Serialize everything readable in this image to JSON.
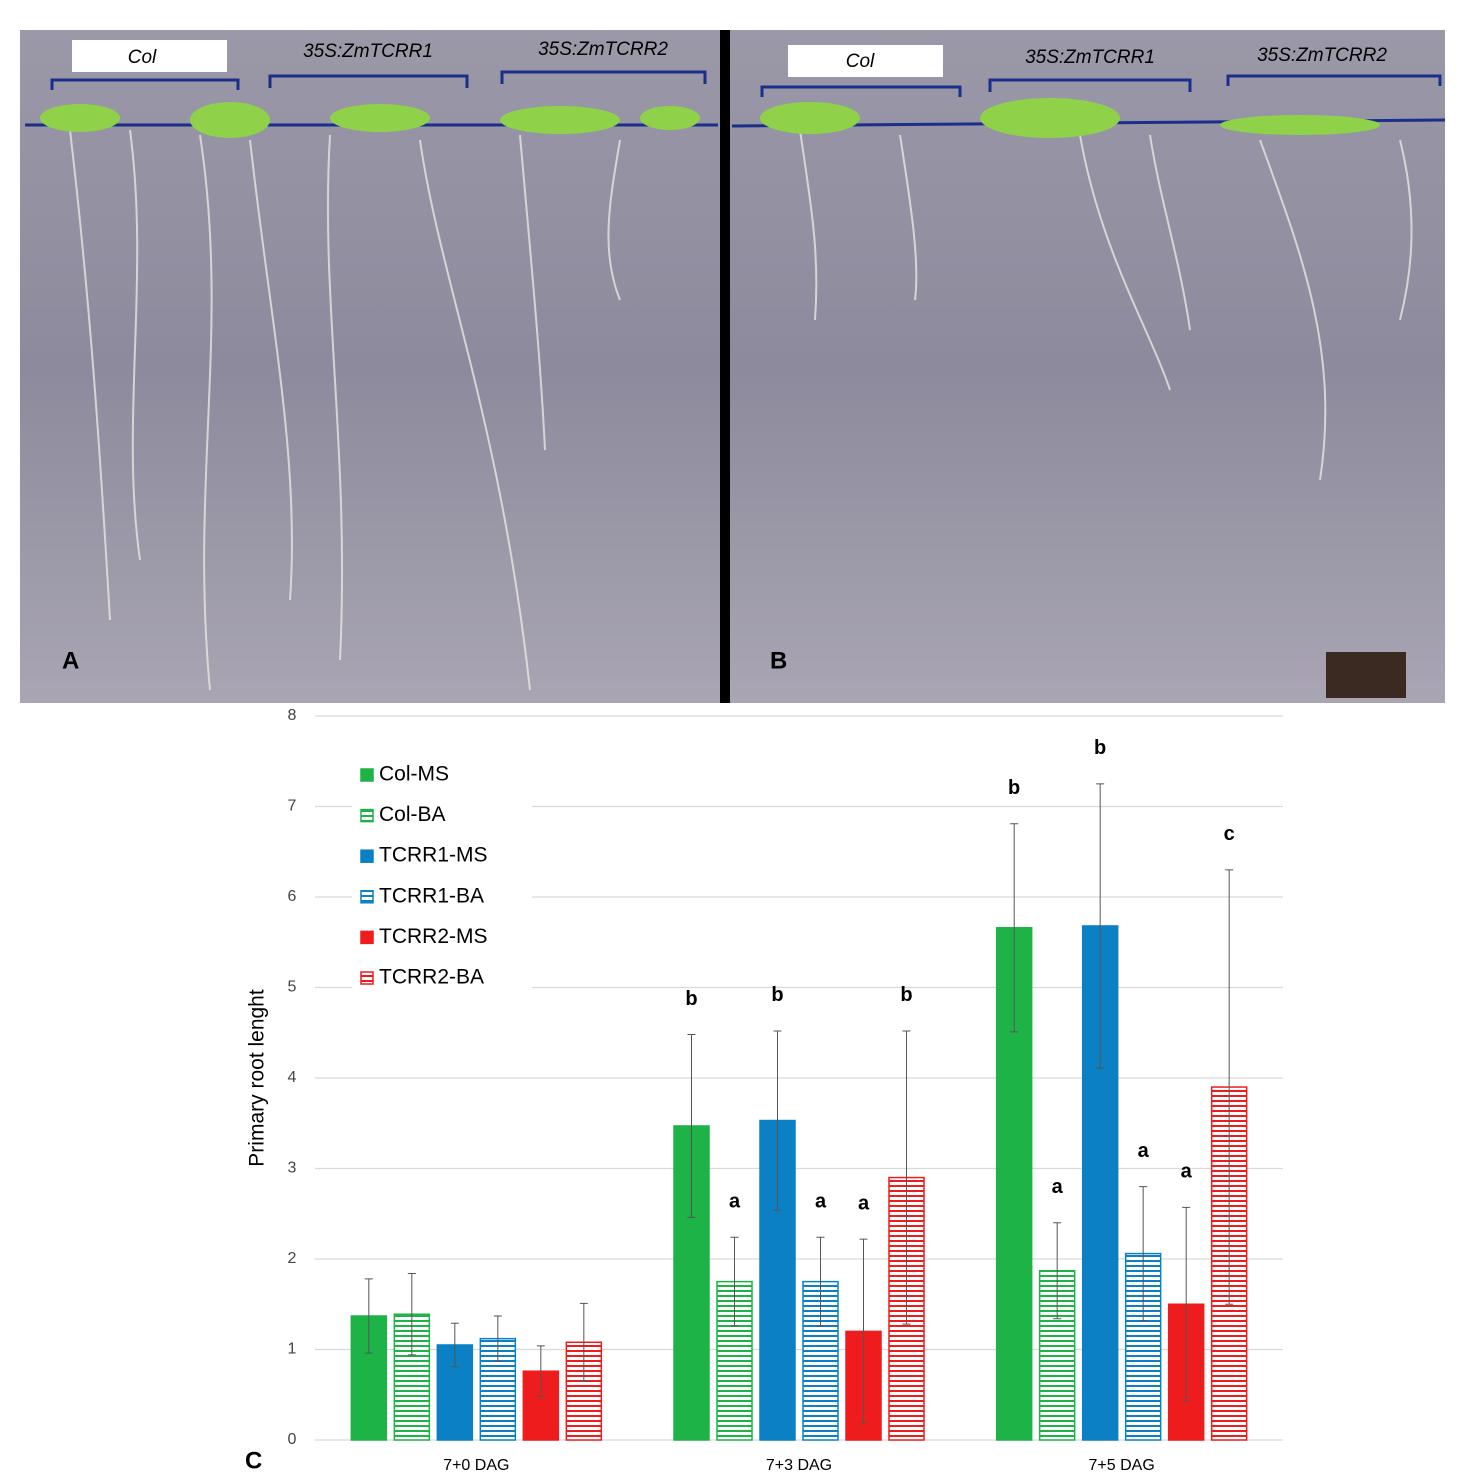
{
  "photos": [
    {
      "letter": "A",
      "labels": [
        "Col",
        "35S:ZmTCRR1",
        "35S:ZmTCRR2"
      ]
    },
    {
      "letter": "B",
      "labels": [
        "Col",
        "35S:ZmTCRR1",
        "35S:ZmTCRR2"
      ]
    }
  ],
  "chart_data": {
    "type": "bar",
    "panel_label": "C",
    "y_label": "Primary root lenght",
    "categories": [
      "7+0 DAG",
      "7+3 DAG",
      "7+5 DAG"
    ],
    "ylim": [
      0,
      8
    ],
    "yticks": [
      0,
      1,
      2,
      3,
      4,
      5,
      6,
      7,
      8
    ],
    "grid": true,
    "legend": "upper-left",
    "series": [
      {
        "name": "Col-MS",
        "color": "#1eb346",
        "hatched": false,
        "values": [
          1.37,
          3.47,
          5.66
        ],
        "errors": [
          0.41,
          1.01,
          1.15
        ],
        "annotations": [
          null,
          "b",
          "b"
        ]
      },
      {
        "name": "Col-BA",
        "color": "#1eb346",
        "hatched": true,
        "values": [
          1.39,
          1.75,
          1.87
        ],
        "errors": [
          0.45,
          0.49,
          0.53
        ],
        "annotations": [
          null,
          "a",
          "a"
        ]
      },
      {
        "name": "TCRR1-MS",
        "color": "#0b80c4",
        "hatched": false,
        "values": [
          1.05,
          3.53,
          5.68
        ],
        "errors": [
          0.24,
          0.99,
          1.57
        ],
        "annotations": [
          null,
          "b",
          "b"
        ]
      },
      {
        "name": "TCRR1-BA",
        "color": "#0b80c4",
        "hatched": true,
        "values": [
          1.12,
          1.75,
          2.06
        ],
        "errors": [
          0.25,
          0.49,
          0.74
        ],
        "annotations": [
          null,
          "a",
          "a"
        ]
      },
      {
        "name": "TCRR2-MS",
        "color": "#ee1c1c",
        "hatched": false,
        "values": [
          0.76,
          1.2,
          1.5
        ],
        "errors": [
          0.28,
          1.02,
          1.07
        ],
        "annotations": [
          null,
          "a",
          "a"
        ]
      },
      {
        "name": "TCRR2-BA",
        "color": "#ee1c1c",
        "hatched": true,
        "values": [
          1.08,
          2.9,
          3.9
        ],
        "errors": [
          0.43,
          1.62,
          2.4
        ],
        "annotations": [
          null,
          "b",
          "c"
        ]
      }
    ]
  }
}
